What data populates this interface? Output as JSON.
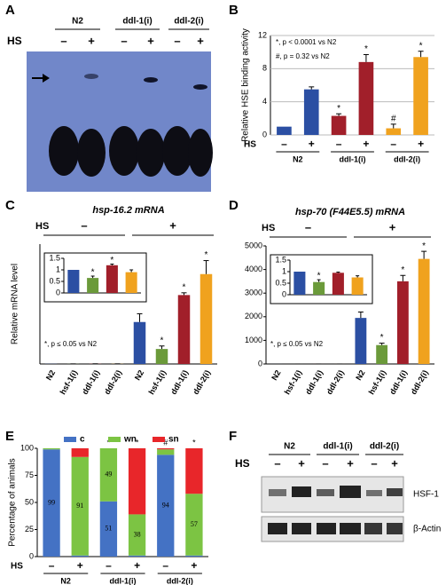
{
  "panel_labels": [
    "A",
    "B",
    "C",
    "D",
    "E",
    "F"
  ],
  "blot_A": {
    "lanes_header": [
      "N2",
      "ddl-1(i)",
      "ddl-2(i)"
    ],
    "row_label": "HS",
    "treatments": [
      "–",
      "+"
    ]
  },
  "blot_F": {
    "lanes_header": [
      "N2",
      "ddl-1(i)",
      "ddl-2(i)"
    ],
    "row_label": "HS",
    "treatments": [
      "–",
      "+"
    ],
    "bands": [
      "HSF-1",
      "β-Actin"
    ]
  },
  "chart_data": [
    {
      "type": "bar",
      "y_label": "Relative HSE binding activity",
      "annotations": [
        "*, p < 0.0001 vs N2",
        "#, p = 0.32 vs N2"
      ],
      "x_row_label": "HS",
      "groups": [
        "N2",
        "ddl-1(i)",
        "ddl-2(i)"
      ],
      "treatments": [
        "–",
        "+"
      ],
      "values": [
        1,
        5.5,
        2.3,
        8.8,
        0.8,
        9.4
      ],
      "errors": [
        0,
        0.3,
        0.25,
        0.9,
        0.5,
        0.7
      ],
      "colors": [
        "#2b4fa3",
        "#a11f2a",
        "#f0a21e"
      ],
      "markers": [
        null,
        null,
        "*",
        "*",
        "#",
        "*"
      ],
      "ylim": [
        0,
        12
      ],
      "yticks": [
        0,
        4,
        8,
        12
      ],
      "grid": true
    },
    {
      "type": "bar",
      "title": "hsp-16.2 mRNA",
      "y_label": "Relative mRNA level",
      "x_row_label": "HS",
      "treatments": [
        "–",
        "+"
      ],
      "categories": [
        "N2",
        "hsf-1(i)",
        "ddl-1(i)",
        "ddl-2(i)",
        "N2",
        "hsf-1(i)",
        "ddl-1(i)",
        "ddl-2(i)"
      ],
      "values": [
        1,
        0.65,
        1.2,
        0.9,
        280,
        100,
        460,
        600
      ],
      "errors": [
        0,
        0.08,
        0.05,
        0.1,
        55,
        20,
        15,
        90
      ],
      "colors": [
        "#2b4fa3",
        "#6b9a3a",
        "#a11f2a",
        "#f0a21e"
      ],
      "markers": [
        null,
        null,
        null,
        null,
        null,
        "*",
        "*",
        "*"
      ],
      "annotation": "*, p ≤ 0.05 vs N2",
      "ylim": [
        0,
        800
      ],
      "inset": {
        "values": [
          1,
          0.65,
          1.2,
          0.9
        ],
        "errors": [
          0,
          0.08,
          0.05,
          0.1
        ],
        "markers": [
          null,
          "*",
          "*",
          null
        ],
        "ylim": [
          0,
          1.5
        ],
        "yticks": [
          0,
          0.5,
          1,
          1.5
        ]
      }
    },
    {
      "type": "bar",
      "title": "hsp-70 (F44E5.5) mRNA",
      "x_row_label": "HS",
      "treatments": [
        "–",
        "+"
      ],
      "categories": [
        "N2",
        "hsf-1(i)",
        "ddl-1(i)",
        "ddl-2(i)",
        "N2",
        "hsf-1(i)",
        "ddl-1(i)",
        "ddl-2(i)"
      ],
      "values": [
        1,
        0.55,
        0.95,
        0.75,
        1950,
        800,
        3500,
        4450
      ],
      "errors": [
        0,
        0.1,
        0.03,
        0.07,
        250,
        80,
        250,
        320
      ],
      "colors": [
        "#2b4fa3",
        "#6b9a3a",
        "#a11f2a",
        "#f0a21e"
      ],
      "markers": [
        null,
        null,
        null,
        null,
        null,
        "*",
        "*",
        "*"
      ],
      "annotation": "*, p ≤ 0.05 vs N2",
      "ylim": [
        0,
        5000
      ],
      "yticks": [
        0,
        1000,
        2000,
        3000,
        4000,
        5000
      ],
      "inset": {
        "values": [
          1,
          0.55,
          0.95,
          0.75
        ],
        "errors": [
          0,
          0.1,
          0.03,
          0.07
        ],
        "markers": [
          null,
          "*",
          null,
          null
        ],
        "ylim": [
          0,
          1.5
        ],
        "yticks": [
          0,
          0.5,
          1,
          1.5
        ]
      }
    },
    {
      "type": "stacked_bar",
      "y_label": "Percentage of animals",
      "x_row_label": "HS",
      "groups": [
        "N2",
        "ddl-1(i)",
        "ddl-2(i)"
      ],
      "treatments": [
        "–",
        "+"
      ],
      "series": [
        {
          "name": "c",
          "color": "#4472c4",
          "values": [
            99,
            1,
            51,
            1,
            94,
            1
          ],
          "value_labels": [
            "99",
            null,
            "51",
            null,
            "94",
            null
          ]
        },
        {
          "name": "wn",
          "color": "#7cc443",
          "values": [
            1,
            91,
            49,
            38,
            5,
            57
          ],
          "value_labels": [
            null,
            "91",
            "49",
            "38",
            null,
            "57"
          ]
        },
        {
          "name": "sn",
          "color": "#e8262a",
          "values": [
            0,
            8,
            0,
            61,
            1,
            42
          ],
          "value_labels": [
            null,
            null,
            null,
            null,
            null,
            null
          ]
        }
      ],
      "markers": [
        null,
        null,
        "*",
        "*",
        "#",
        "*"
      ],
      "ylim": [
        0,
        100
      ],
      "yticks": [
        0,
        25,
        50,
        75,
        100
      ]
    }
  ]
}
